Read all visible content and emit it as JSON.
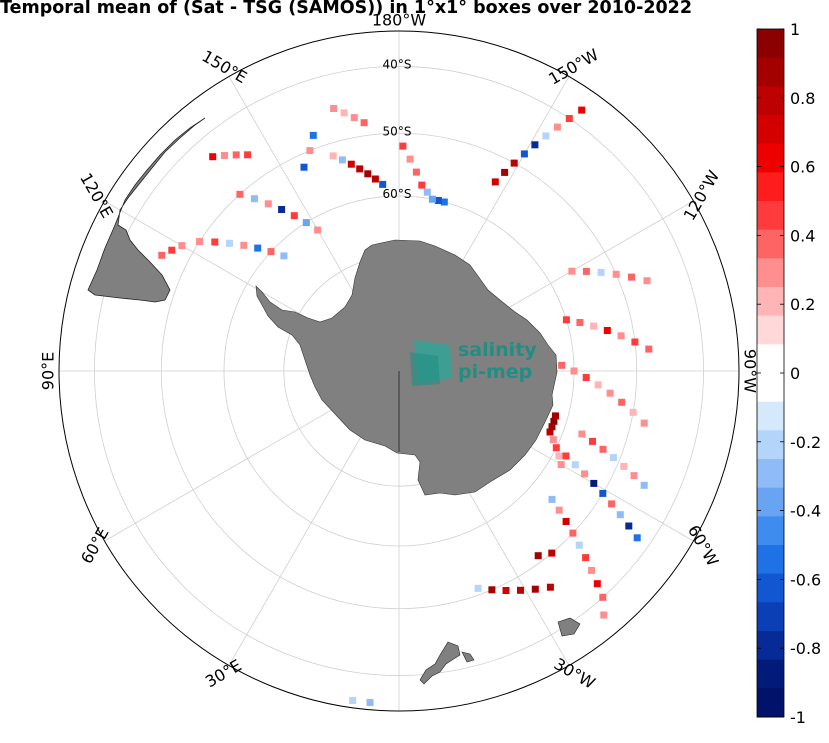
{
  "title": "Temporal mean of (Sat - TSG (SAMOS)) in 1°x1° boxes over 2010-2022",
  "watermark": {
    "line1": "salinity",
    "line2": "pi-mep"
  },
  "map": {
    "projection": "south polar stereographic",
    "longitude_labels": [
      {
        "lon": -30,
        "text": "30°W"
      },
      {
        "lon": 30,
        "text": "30°E"
      },
      {
        "lon": -60,
        "text": "60°W"
      },
      {
        "lon": 60,
        "text": "60°E"
      },
      {
        "lon": -90,
        "text": "90°W"
      },
      {
        "lon": 90,
        "text": "90°E"
      },
      {
        "lon": -120,
        "text": "120°W"
      },
      {
        "lon": 120,
        "text": "120°E"
      },
      {
        "lon": -150,
        "text": "150°W"
      },
      {
        "lon": 150,
        "text": "150°E"
      },
      {
        "lon": 180,
        "text": "180°W"
      }
    ],
    "latitude_labels": [
      {
        "lat": -60,
        "text": "60°S"
      },
      {
        "lat": -50,
        "text": "50°S"
      },
      {
        "lat": -40,
        "text": "40°S"
      }
    ],
    "colors": {
      "land": "#808080",
      "grid": "#cfcfcf",
      "frame": "#000000"
    }
  },
  "colorbar": {
    "ticks": [
      "1",
      "0.8",
      "0.6",
      "0.4",
      "0.2",
      "0",
      "-0.2",
      "-0.4",
      "-0.6",
      "-0.8",
      "-1"
    ],
    "range": [
      -1,
      1
    ],
    "colors": [
      "#8b0000",
      "#a50000",
      "#bd0000",
      "#d40000",
      "#ee0000",
      "#ff1c1c",
      "#ff3b3b",
      "#ff6464",
      "#ff8e8e",
      "#ffb5b5",
      "#ffd9d9",
      "#ffffff",
      "#ffffff",
      "#d6e8fc",
      "#b4d4fa",
      "#8fbcf6",
      "#69a4f3",
      "#3f8cef",
      "#1f72e6",
      "#1157d2",
      "#0a3fb6",
      "#062a96",
      "#021b7a",
      "#00126a"
    ]
  },
  "chart_data": {
    "type": "heatmap",
    "title": "Temporal mean of (Sat - TSG (SAMOS)) in 1°x1° boxes over 2010-2022",
    "value_range": [
      -1,
      1
    ],
    "tracks": [
      {
        "points": [
          [
            -40,
            -38,
            0.3
          ],
          [
            -42,
            -40,
            0.4
          ],
          [
            -43,
            -42,
            0.6
          ],
          [
            -44,
            -44,
            0.3
          ],
          [
            -45,
            -46,
            0.5
          ],
          [
            -46,
            -48,
            -0.2
          ],
          [
            -47,
            -50,
            0.4
          ],
          [
            -48,
            -52,
            0.7
          ],
          [
            -49,
            -54,
            0.3
          ],
          [
            -50,
            -56,
            -0.3
          ]
        ]
      },
      {
        "points": [
          [
            -55,
            -42,
            -0.5
          ],
          [
            -56,
            -44,
            -0.8
          ],
          [
            -57,
            -46,
            -0.3
          ],
          [
            -58,
            -48,
            0.4
          ],
          [
            -59,
            -50,
            -0.6
          ],
          [
            -60,
            -52,
            -0.9
          ],
          [
            -61,
            -54,
            0.3
          ],
          [
            -62,
            -56,
            -0.2
          ],
          [
            -63,
            -58,
            0.5
          ]
        ]
      },
      {
        "points": [
          [
            -35,
            -46,
            0.8
          ],
          [
            -32,
            -47,
            0.9
          ],
          [
            -29,
            -48,
            0.8
          ],
          [
            -26,
            -49,
            0.7
          ],
          [
            -23,
            -50,
            0.9
          ],
          [
            -20,
            -51,
            -0.2
          ],
          [
            -40,
            -50,
            0.8
          ],
          [
            -37,
            -51,
            0.9
          ]
        ]
      },
      {
        "points": [
          [
            -60,
            -58,
            0.3
          ],
          [
            -62,
            -59,
            0.2
          ],
          [
            -64,
            -60,
            0.5
          ],
          [
            -66,
            -61,
            0.3
          ],
          [
            -68,
            -62,
            0.8
          ],
          [
            -70,
            -62,
            0.9
          ],
          [
            -72,
            -62,
            0.95
          ],
          [
            -74,
            -62,
            0.9
          ]
        ]
      },
      {
        "points": [
          [
            -65,
            -45,
            -0.3
          ],
          [
            -66,
            -47,
            0.3
          ],
          [
            -67,
            -49,
            0.2
          ],
          [
            -68,
            -51,
            -0.2
          ],
          [
            -69,
            -53,
            0.4
          ],
          [
            -70,
            -55,
            0.5
          ],
          [
            -71,
            -57,
            0.3
          ]
        ]
      },
      {
        "points": [
          [
            -78,
            -48,
            0.3
          ],
          [
            -80,
            -50,
            0.2
          ],
          [
            -82,
            -52,
            0.4
          ],
          [
            -84,
            -54,
            0.3
          ],
          [
            -86,
            -56,
            0.2
          ],
          [
            -88,
            -58,
            0.5
          ],
          [
            -90,
            -60,
            0.3
          ],
          [
            -92,
            -62,
            0.4
          ]
        ]
      },
      {
        "points": [
          [
            -95,
            -48,
            0.4
          ],
          [
            -97,
            -50,
            0.5
          ],
          [
            -99,
            -52,
            0.3
          ],
          [
            -101,
            -54,
            0.6
          ],
          [
            -103,
            -56,
            0.2
          ],
          [
            -105,
            -58,
            0.4
          ],
          [
            -107,
            -60,
            0.5
          ]
        ]
      },
      {
        "points": [
          [
            -110,
            -46,
            0.3
          ],
          [
            -112,
            -48,
            0.4
          ],
          [
            -114,
            -50,
            0.3
          ],
          [
            -116,
            -52,
            -0.2
          ],
          [
            -118,
            -54,
            0.4
          ],
          [
            -120,
            -56,
            0.3
          ]
        ]
      },
      {
        "points": [
          [
            -145,
            -38,
            0.6
          ],
          [
            -146,
            -40,
            0.5
          ],
          [
            -147,
            -42,
            0.3
          ],
          [
            -148,
            -44,
            -0.2
          ],
          [
            -149,
            -46,
            -0.8
          ],
          [
            -150,
            -48,
            -0.6
          ],
          [
            -151,
            -50,
            0.8
          ],
          [
            -152,
            -52,
            0.9
          ],
          [
            -153,
            -54,
            0.7
          ]
        ]
      },
      {
        "points": [
          [
            -165,
            -60,
            -0.5
          ],
          [
            -167,
            -60,
            -0.6
          ],
          [
            -169,
            -60,
            -0.4
          ],
          [
            -171,
            -59,
            -0.3
          ],
          [
            -173,
            -58,
            0.5
          ],
          [
            -175,
            -56,
            0.4
          ],
          [
            -177,
            -54,
            0.3
          ],
          [
            -179,
            -52,
            0.5
          ]
        ]
      },
      {
        "points": [
          [
            175,
            -58,
            -0.6
          ],
          [
            173,
            -57,
            0.8
          ],
          [
            171,
            -56,
            0.9
          ],
          [
            169,
            -55,
            0.8
          ],
          [
            167,
            -54,
            0.7
          ],
          [
            165,
            -53,
            -0.3
          ],
          [
            163,
            -52,
            0.2
          ]
        ]
      },
      {
        "points": [
          [
            172,
            -48,
            0.4
          ],
          [
            170,
            -47,
            0.3
          ],
          [
            168,
            -46,
            0.2
          ],
          [
            166,
            -45,
            0.3
          ],
          [
            160,
            -48,
            -0.5
          ],
          [
            158,
            -50,
            0.3
          ],
          [
            155,
            -52,
            -0.6
          ]
        ]
      },
      {
        "points": [
          [
            150,
            -62,
            0.3
          ],
          [
            148,
            -60,
            -0.4
          ],
          [
            146,
            -58,
            0.5
          ],
          [
            144,
            -56,
            -0.8
          ],
          [
            142,
            -54,
            0.3
          ],
          [
            140,
            -52,
            -0.3
          ],
          [
            138,
            -50,
            0.4
          ]
        ]
      },
      {
        "points": [
          [
            135,
            -62,
            -0.3
          ],
          [
            133,
            -60,
            0.4
          ],
          [
            131,
            -58,
            -0.5
          ],
          [
            129,
            -56,
            0.3
          ],
          [
            127,
            -54,
            -0.2
          ],
          [
            125,
            -52,
            0.5
          ],
          [
            123,
            -50,
            0.3
          ]
        ]
      },
      {
        "points": [
          [
            145,
            -46,
            0.5
          ],
          [
            143,
            -45,
            0.4
          ],
          [
            141,
            -44,
            0.3
          ],
          [
            139,
            -43,
            0.6
          ],
          [
            120,
            -48,
            0.3
          ],
          [
            118,
            -47,
            0.5
          ],
          [
            116,
            -46,
            0.4
          ]
        ]
      },
      {
        "points": [
          [
            5,
            -36,
            -0.3
          ],
          [
            8,
            -36,
            -0.2
          ]
        ]
      }
    ]
  }
}
